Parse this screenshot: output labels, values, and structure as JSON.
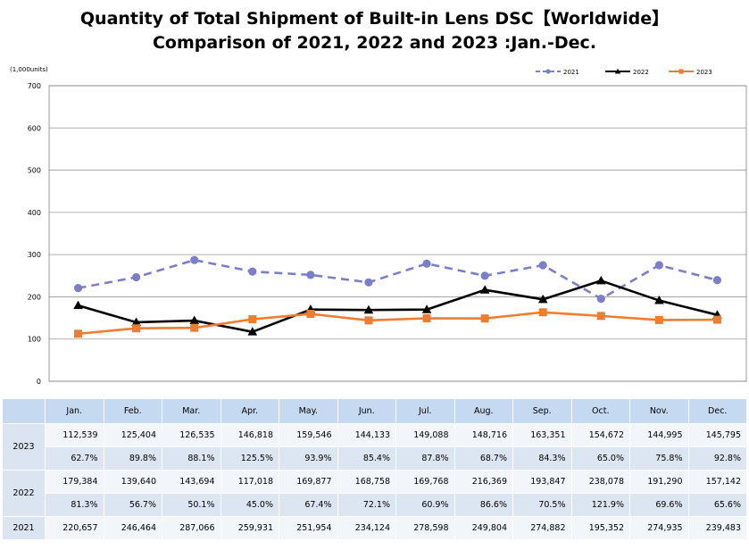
{
  "title": {
    "line1": "Quantity of Total Shipment of Built-in Lens DSC【Worldwide】",
    "line2": "Comparison of 2021, 2022 and 2023 :Jan.-Dec."
  },
  "chart_data": {
    "type": "line",
    "unit_label": "(1,000units)",
    "categories": [
      "Jan.",
      "Feb.",
      "Mar.",
      "Apr.",
      "May.",
      "Jun.",
      "Jul.",
      "Aug.",
      "Sep.",
      "Oct.",
      "Nov.",
      "Dec."
    ],
    "ylim": [
      0,
      700
    ],
    "yticks": [
      0,
      100,
      200,
      300,
      400,
      500,
      600,
      700
    ],
    "grid": true,
    "legend_position": "top-right",
    "series": [
      {
        "name": "2021",
        "color": "#7b7fc9",
        "style": "dashed",
        "marker": "circle",
        "values": [
          220.657,
          246.464,
          287.066,
          259.931,
          251.954,
          234.124,
          278.598,
          249.804,
          274.882,
          195.352,
          274.935,
          239.483
        ]
      },
      {
        "name": "2022",
        "color": "#000000",
        "style": "solid",
        "marker": "triangle",
        "values": [
          179.384,
          139.64,
          143.694,
          117.018,
          169.877,
          168.758,
          169.768,
          216.369,
          193.847,
          238.078,
          191.29,
          157.142
        ]
      },
      {
        "name": "2023",
        "color": "#ed7d31",
        "style": "solid",
        "marker": "square",
        "values": [
          112.539,
          125.404,
          126.535,
          146.818,
          159.546,
          144.133,
          149.088,
          148.716,
          163.351,
          154.672,
          144.995,
          145.795
        ]
      }
    ]
  },
  "table": {
    "months": [
      "Jan.",
      "Feb.",
      "Mar.",
      "Apr.",
      "May.",
      "Jun.",
      "Jul.",
      "Aug.",
      "Sep.",
      "Oct.",
      "Nov.",
      "Dec."
    ],
    "rows": [
      {
        "year": "2023",
        "values": [
          "112,539",
          "125,404",
          "126,535",
          "146,818",
          "159,546",
          "144,133",
          "149,088",
          "148,716",
          "163,351",
          "154,672",
          "144,995",
          "145,795"
        ],
        "ratios": [
          "62.7%",
          "89.8%",
          "88.1%",
          "125.5%",
          "93.9%",
          "85.4%",
          "87.8%",
          "68.7%",
          "84.3%",
          "65.0%",
          "75.8%",
          "92.8%"
        ]
      },
      {
        "year": "2022",
        "values": [
          "179,384",
          "139,640",
          "143,694",
          "117,018",
          "169,877",
          "168,758",
          "169,768",
          "216,369",
          "193,847",
          "238,078",
          "191,290",
          "157,142"
        ],
        "ratios": [
          "81.3%",
          "56.7%",
          "50.1%",
          "45.0%",
          "67.4%",
          "72.1%",
          "60.9%",
          "86.6%",
          "70.5%",
          "121.9%",
          "69.6%",
          "65.6%"
        ]
      },
      {
        "year": "2021",
        "values": [
          "220,657",
          "246,464",
          "287,066",
          "259,931",
          "251,954",
          "234,124",
          "278,598",
          "249,804",
          "274,882",
          "195,352",
          "274,935",
          "239,483"
        ],
        "ratios": []
      }
    ]
  }
}
